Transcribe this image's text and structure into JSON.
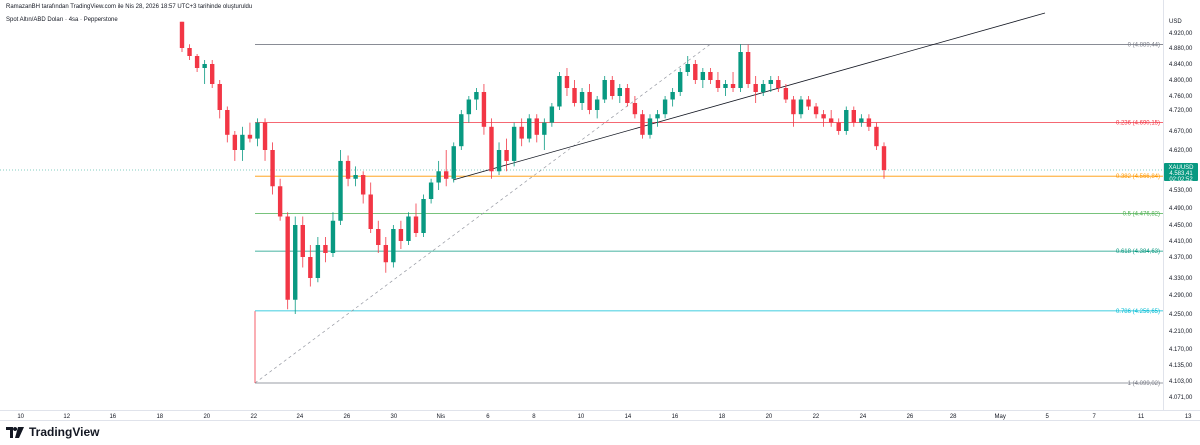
{
  "header": {
    "attribution": "RamazanBH tarafından TradingView.com ile Nis 28, 2026 18:57 UTC+3 tarihinde oluşturuldu"
  },
  "symbol_line": "Spot Altın/ABD Doları · 4sa · Pepperstone",
  "brand": "TradingView",
  "chart_data": {
    "type": "candlestick",
    "currency": "USD",
    "y_ticks": [
      {
        "v": 4920,
        "label": "4.920,00"
      },
      {
        "v": 4880,
        "label": "4.880,00"
      },
      {
        "v": 4840,
        "label": "4.840,00"
      },
      {
        "v": 4800,
        "label": "4.800,00"
      },
      {
        "v": 4760,
        "label": "4.760,00"
      },
      {
        "v": 4720,
        "label": "4.720,00"
      },
      {
        "v": 4670,
        "label": "4.670,00"
      },
      {
        "v": 4620,
        "label": "4.620,00"
      },
      {
        "v": 4530,
        "label": "4.530,00"
      },
      {
        "v": 4490,
        "label": "4.490,00"
      },
      {
        "v": 4450,
        "label": "4.450,00"
      },
      {
        "v": 4410,
        "label": "4.410,00"
      },
      {
        "v": 4370,
        "label": "4.370,00"
      },
      {
        "v": 4330,
        "label": "4.330,00"
      },
      {
        "v": 4290,
        "label": "4.290,00"
      },
      {
        "v": 4250,
        "label": "4.250,00"
      },
      {
        "v": 4210,
        "label": "4.210,00"
      },
      {
        "v": 4170,
        "label": "4.170,00"
      },
      {
        "v": 4135,
        "label": "4.135,00"
      },
      {
        "v": 4103,
        "label": "4.103,00"
      },
      {
        "v": 4071,
        "label": "4.071,00"
      }
    ],
    "ylim": [
      4062,
      4950
    ],
    "x_ticks": [
      "10",
      "12",
      "16",
      "18",
      "20",
      "22",
      "24",
      "26",
      "30",
      "Nis",
      "6",
      "8",
      "10",
      "14",
      "16",
      "18",
      "20",
      "22",
      "24",
      "26",
      "28",
      "May",
      "5",
      "7",
      "11",
      "13"
    ],
    "fib_levels": [
      {
        "label": "0 (4.889,44)",
        "value": 4889.44,
        "color": "#787b86"
      },
      {
        "label": "0.236 (4.690,15)",
        "value": 4690.15,
        "color": "#f23645"
      },
      {
        "label": "0.382 (4.566,84)",
        "value": 4566.84,
        "color": "#ff9800"
      },
      {
        "label": "0.5 (4.476,82)",
        "value": 4476.82,
        "color": "#4caf50"
      },
      {
        "label": "0.618 (4.384,63)",
        "value": 4384.63,
        "color": "#089981"
      },
      {
        "label": "0.786 (4.256,65)",
        "value": 4256.65,
        "color": "#00bcd4"
      },
      {
        "label": "1 (4.099,02)",
        "value": 4099.02,
        "color": "#787b86"
      }
    ],
    "last_price": {
      "symbol": "XAUUSD",
      "price": "4.583,41",
      "countdown": "02:02:52",
      "value": 4583.41
    },
    "candles": [
      [
        4950,
        4950,
        4870,
        4880
      ],
      [
        4880,
        4890,
        4850,
        4860
      ],
      [
        4860,
        4865,
        4820,
        4830
      ],
      [
        4830,
        4850,
        4790,
        4840
      ],
      [
        4840,
        4850,
        4780,
        4790
      ],
      [
        4790,
        4800,
        4700,
        4720
      ],
      [
        4720,
        4730,
        4640,
        4660
      ],
      [
        4660,
        4670,
        4600,
        4620
      ],
      [
        4620,
        4680,
        4600,
        4660
      ],
      [
        4660,
        4690,
        4640,
        4650
      ],
      [
        4650,
        4700,
        4630,
        4690
      ],
      [
        4690,
        4700,
        4600,
        4620
      ],
      [
        4620,
        4640,
        4520,
        4540
      ],
      [
        4540,
        4560,
        4460,
        4470
      ],
      [
        4470,
        4480,
        4260,
        4280
      ],
      [
        4280,
        4470,
        4250,
        4450
      ],
      [
        4450,
        4470,
        4350,
        4370
      ],
      [
        4370,
        4400,
        4310,
        4330
      ],
      [
        4330,
        4420,
        4320,
        4400
      ],
      [
        4400,
        4420,
        4360,
        4380
      ],
      [
        4380,
        4480,
        4370,
        4460
      ],
      [
        4460,
        4620,
        4450,
        4600
      ],
      [
        4600,
        4610,
        4540,
        4560
      ],
      [
        4560,
        4590,
        4540,
        4570
      ],
      [
        4570,
        4580,
        4500,
        4520
      ],
      [
        4520,
        4550,
        4430,
        4440
      ],
      [
        4440,
        4460,
        4380,
        4400
      ],
      [
        4400,
        4420,
        4340,
        4360
      ],
      [
        4360,
        4450,
        4350,
        4440
      ],
      [
        4440,
        4460,
        4390,
        4410
      ],
      [
        4410,
        4480,
        4400,
        4470
      ],
      [
        4470,
        4500,
        4420,
        4430
      ],
      [
        4430,
        4520,
        4420,
        4510
      ],
      [
        4510,
        4560,
        4500,
        4550
      ],
      [
        4550,
        4600,
        4530,
        4580
      ],
      [
        4580,
        4620,
        4540,
        4560
      ],
      [
        4560,
        4640,
        4550,
        4630
      ],
      [
        4630,
        4720,
        4620,
        4710
      ],
      [
        4710,
        4760,
        4690,
        4750
      ],
      [
        4750,
        4780,
        4720,
        4770
      ],
      [
        4770,
        4790,
        4660,
        4680
      ],
      [
        4680,
        4700,
        4560,
        4580
      ],
      [
        4580,
        4640,
        4570,
        4620
      ],
      [
        4620,
        4650,
        4580,
        4600
      ],
      [
        4600,
        4690,
        4590,
        4680
      ],
      [
        4680,
        4700,
        4630,
        4650
      ],
      [
        4650,
        4710,
        4640,
        4700
      ],
      [
        4700,
        4710,
        4640,
        4660
      ],
      [
        4660,
        4700,
        4620,
        4690
      ],
      [
        4690,
        4740,
        4680,
        4730
      ],
      [
        4730,
        4820,
        4720,
        4810
      ],
      [
        4810,
        4830,
        4760,
        4780
      ],
      [
        4780,
        4800,
        4730,
        4740
      ],
      [
        4740,
        4780,
        4720,
        4770
      ],
      [
        4770,
        4790,
        4710,
        4720
      ],
      [
        4720,
        4760,
        4700,
        4750
      ],
      [
        4750,
        4810,
        4740,
        4800
      ],
      [
        4800,
        4810,
        4750,
        4760
      ],
      [
        4760,
        4790,
        4740,
        4780
      ],
      [
        4780,
        4790,
        4730,
        4740
      ],
      [
        4740,
        4760,
        4700,
        4710
      ],
      [
        4710,
        4720,
        4650,
        4660
      ],
      [
        4660,
        4710,
        4650,
        4700
      ],
      [
        4700,
        4720,
        4680,
        4710
      ],
      [
        4710,
        4760,
        4700,
        4750
      ],
      [
        4750,
        4780,
        4730,
        4770
      ],
      [
        4770,
        4830,
        4760,
        4820
      ],
      [
        4820,
        4860,
        4810,
        4840
      ],
      [
        4840,
        4850,
        4790,
        4800
      ],
      [
        4800,
        4830,
        4780,
        4820
      ],
      [
        4820,
        4830,
        4790,
        4800
      ],
      [
        4800,
        4820,
        4770,
        4780
      ],
      [
        4780,
        4800,
        4760,
        4790
      ],
      [
        4790,
        4820,
        4770,
        4780
      ],
      [
        4780,
        4890,
        4770,
        4870
      ],
      [
        4870,
        4889,
        4780,
        4790
      ],
      [
        4790,
        4810,
        4740,
        4770
      ],
      [
        4770,
        4800,
        4760,
        4790
      ],
      [
        4790,
        4810,
        4770,
        4800
      ],
      [
        4800,
        4810,
        4770,
        4780
      ],
      [
        4780,
        4790,
        4740,
        4750
      ],
      [
        4750,
        4760,
        4680,
        4710
      ],
      [
        4710,
        4760,
        4700,
        4750
      ],
      [
        4750,
        4760,
        4720,
        4730
      ],
      [
        4730,
        4740,
        4700,
        4710
      ],
      [
        4710,
        4720,
        4680,
        4700
      ],
      [
        4700,
        4720,
        4680,
        4690
      ],
      [
        4690,
        4700,
        4660,
        4670
      ],
      [
        4670,
        4730,
        4660,
        4720
      ],
      [
        4720,
        4730,
        4680,
        4690
      ],
      [
        4690,
        4710,
        4680,
        4700
      ],
      [
        4700,
        4710,
        4670,
        4680
      ],
      [
        4680,
        4690,
        4620,
        4630
      ],
      [
        4630,
        4640,
        4560,
        4583.41
      ]
    ],
    "trendline": {
      "from": [
        16,
        4350
      ],
      "to": [
        118,
        4950
      ]
    },
    "lines": [
      {
        "from": [
          48.5,
          4566.84
        ],
        "to": [
          134,
          4955
        ],
        "style": "solid",
        "color": "#131722"
      },
      {
        "from": [
          13.5,
          4099.02
        ],
        "to": [
          75,
          4889.44
        ],
        "style": "dashed",
        "color": "#787b86"
      }
    ],
    "fib_span": [
      13.5,
      155
    ]
  }
}
